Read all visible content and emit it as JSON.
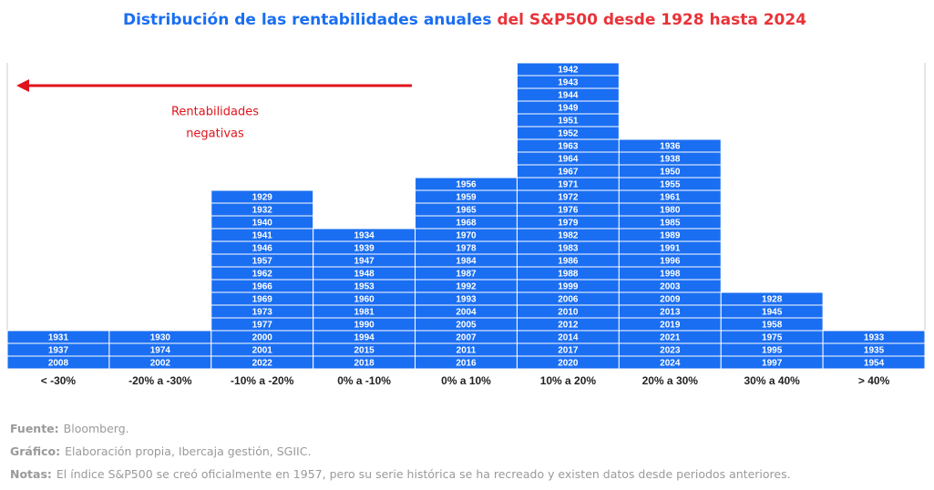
{
  "chart_data": {
    "type": "year-stack",
    "title": [
      "Distribución de las rentabilidades anuales",
      "del S&P500 desde 1928 hasta 2024"
    ],
    "annotation": [
      "Rentabilidades",
      "negativas"
    ],
    "categories": [
      "< -30%",
      "-20% a -30%",
      "-10% a -20%",
      "0% a -10%",
      "0% a 10%",
      "10% a 20%",
      "20% a 30%",
      "30% a 40%",
      "> 40%"
    ],
    "color": "#1a6ef2",
    "groups": [
      [
        "1931",
        "1937",
        "2008"
      ],
      [
        "1930",
        "1974",
        "2002"
      ],
      [
        "1929",
        "1932",
        "1940",
        "1941",
        "1946",
        "1957",
        "1962",
        "1966",
        "1969",
        "1973",
        "1977",
        "2000",
        "2001",
        "2022"
      ],
      [
        "1934",
        "1939",
        "1947",
        "1948",
        "1953",
        "1960",
        "1981",
        "1990",
        "1994",
        "2015",
        "2018"
      ],
      [
        "1956",
        "1959",
        "1965",
        "1968",
        "1970",
        "1978",
        "1984",
        "1987",
        "1992",
        "1993",
        "2004",
        "2005",
        "2007",
        "2011",
        "2016"
      ],
      [
        "1942",
        "1943",
        "1944",
        "1949",
        "1951",
        "1952",
        "1963",
        "1964",
        "1967",
        "1971",
        "1972",
        "1976",
        "1979",
        "1982",
        "1983",
        "1986",
        "1988",
        "1999",
        "2006",
        "2010",
        "2012",
        "2014",
        "2017",
        "2020"
      ],
      [
        "1936",
        "1938",
        "1950",
        "1955",
        "1961",
        "1980",
        "1985",
        "1989",
        "1991",
        "1996",
        "1998",
        "2003",
        "2009",
        "2013",
        "2019",
        "2021",
        "2023",
        "2024"
      ],
      [
        "1928",
        "1945",
        "1958",
        "1975",
        "1995",
        "1997"
      ],
      [
        "1933",
        "1935",
        "1954"
      ]
    ]
  },
  "notes": [
    {
      "label": "Fuente:",
      "text": "Bloomberg."
    },
    {
      "label": "Gráfico:",
      "text": "Elaboración propia, Ibercaja gestión, SGIIC."
    },
    {
      "label": "Notas:",
      "text": "El índice S&P500 se creó oficialmente en 1957, pero su serie histórica se ha recreado y existen datos desde periodos anteriores."
    }
  ]
}
